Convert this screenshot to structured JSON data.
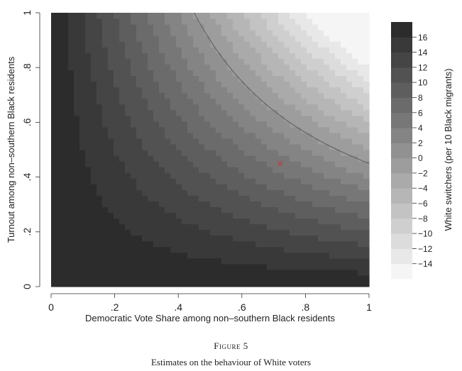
{
  "figure": {
    "label": "Figure 5",
    "caption": "Estimates on the behaviour of White voters"
  },
  "chart_data": {
    "type": "heatmap",
    "title": "",
    "xlabel": "Democratic Vote Share among non–southern Black residents",
    "ylabel": "Turnout among non–southern Black residents",
    "colorbar_label": "White switchers (per 10 Black migrants)",
    "xlim": [
      0,
      1
    ],
    "ylim": [
      0,
      1
    ],
    "x_ticks": [
      "0",
      ".2",
      ".4",
      ".6",
      ".8",
      "1"
    ],
    "y_ticks": [
      "0",
      ".2",
      ".4",
      ".6",
      ".8",
      "1"
    ],
    "formula": "white_switchers = 18 - 40 * x * y",
    "levels": [
      -16,
      -14,
      -12,
      -10,
      -8,
      -6,
      -4,
      -2,
      0,
      2,
      4,
      6,
      8,
      10,
      12,
      14,
      16,
      18
    ],
    "colorbar_ticks": [
      "16",
      "14",
      "12",
      "10",
      "8",
      "6",
      "4",
      "2",
      "0",
      "−2",
      "−4",
      "−6",
      "−8",
      "−10",
      "−12",
      "−14"
    ],
    "contour_line_value": 0,
    "marker": {
      "x": 0.72,
      "y": 0.45,
      "symbol": "×",
      "color": "#c0393b"
    },
    "grid": false,
    "legend": "right"
  }
}
